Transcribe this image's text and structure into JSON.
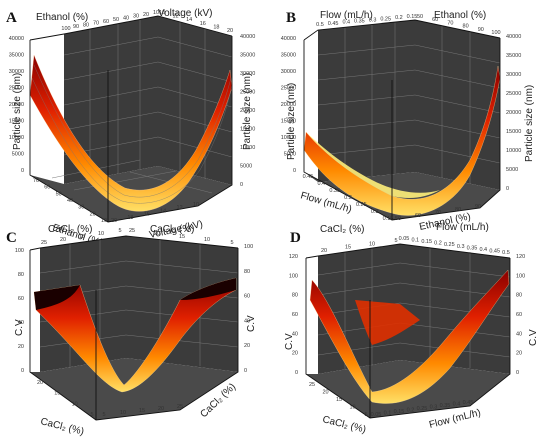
{
  "chart_data": [
    {
      "type": "surface3d",
      "letter": "A",
      "x_label": "Ethanol (%)",
      "y_label": "Voltage (kV)",
      "z_label": "Particle size (nm)",
      "x_ticks_front": [
        "70",
        "60",
        "50",
        "40",
        "30",
        "20",
        "10"
      ],
      "y_ticks_front": [
        "20",
        "18",
        "16",
        "14",
        "12",
        "10"
      ],
      "x_ticks_back": [
        "100",
        "90",
        "80",
        "70",
        "60",
        "50",
        "40",
        "30",
        "20",
        "10"
      ],
      "y_ticks_back": [
        "10",
        "12",
        "14",
        "16",
        "18",
        "20"
      ],
      "z_ticks": [
        "0",
        "5000",
        "10000",
        "15000",
        "20000",
        "25000",
        "30000",
        "35000",
        "40000"
      ],
      "zlim": [
        0,
        40000
      ],
      "surface_shape": "valley",
      "z_left": 36000,
      "z_min": 2000,
      "z_right": 30000,
      "colormap": "hot"
    },
    {
      "type": "surface3d",
      "letter": "B",
      "x_label": "Flow (mL/h)",
      "y_label": "Ethanol (%)",
      "z_label": "Particle size (nm)",
      "x_ticks_front": [
        "0.45",
        "0.4",
        "0.35",
        "0.3",
        "0.25",
        "0.2",
        "0.15"
      ],
      "y_ticks_front": [
        "50",
        "60",
        "70",
        "80",
        "90"
      ],
      "x_ticks_back": [
        "0.5",
        "0.45",
        "0.4",
        "0.35",
        "0.3",
        "0.25",
        "0.2",
        "0.15"
      ],
      "y_ticks_back": [
        "50",
        "60",
        "70",
        "80",
        "90",
        "100"
      ],
      "z_ticks": [
        "0",
        "5000",
        "10000",
        "15000",
        "20000",
        "25000",
        "30000",
        "35000",
        "40000"
      ],
      "zlim": [
        0,
        40000
      ],
      "surface_shape": "valley",
      "z_left": 10000,
      "z_min": 500,
      "z_right": 36000,
      "colormap": "hot"
    },
    {
      "type": "surface3d",
      "letter": "C",
      "x_label": "CaCl₂ (%)",
      "y_label": "CaCl₂ (%)",
      "z_label": "C.V",
      "x_ticks_front": [
        "20",
        "15",
        "10",
        "5"
      ],
      "y_ticks_front": [
        "5",
        "10",
        "15",
        "20",
        "25"
      ],
      "x_ticks_back": [
        "25",
        "20",
        "15",
        "10",
        "5"
      ],
      "y_ticks_back": [
        "25",
        "20",
        "15",
        "10",
        "5"
      ],
      "z_ticks": [
        "0",
        "20",
        "40",
        "60",
        "80",
        "100"
      ],
      "zlim": [
        0,
        100
      ],
      "surface_shape": "valley",
      "z_left": 66,
      "z_min": 6,
      "z_right": 68,
      "colormap": "hot"
    },
    {
      "type": "surface3d",
      "letter": "D",
      "x_label": "CaCl₂ (%)",
      "y_label": "Flow (mL/h)",
      "z_label": "C.V",
      "x_ticks_front": [
        "25",
        "20",
        "15",
        "10",
        "5"
      ],
      "y_ticks_front": [
        "0.05",
        "0.1",
        "0.15",
        "0.2",
        "0.25",
        "0.3",
        "0.35",
        "0.4",
        "0.45"
      ],
      "x_ticks_back": [
        "20",
        "15",
        "10",
        "5"
      ],
      "y_ticks_back": [
        "0.05",
        "0.1",
        "0.15",
        "0.2",
        "0.25",
        "0.3",
        "0.35",
        "0.4",
        "0.45",
        "0.5"
      ],
      "z_ticks": [
        "0",
        "20",
        "40",
        "60",
        "80",
        "100",
        "120"
      ],
      "zlim": [
        0,
        120
      ],
      "surface_shape": "valley",
      "z_left": 80,
      "z_min": 8,
      "z_right": 115,
      "colormap": "hot"
    }
  ]
}
